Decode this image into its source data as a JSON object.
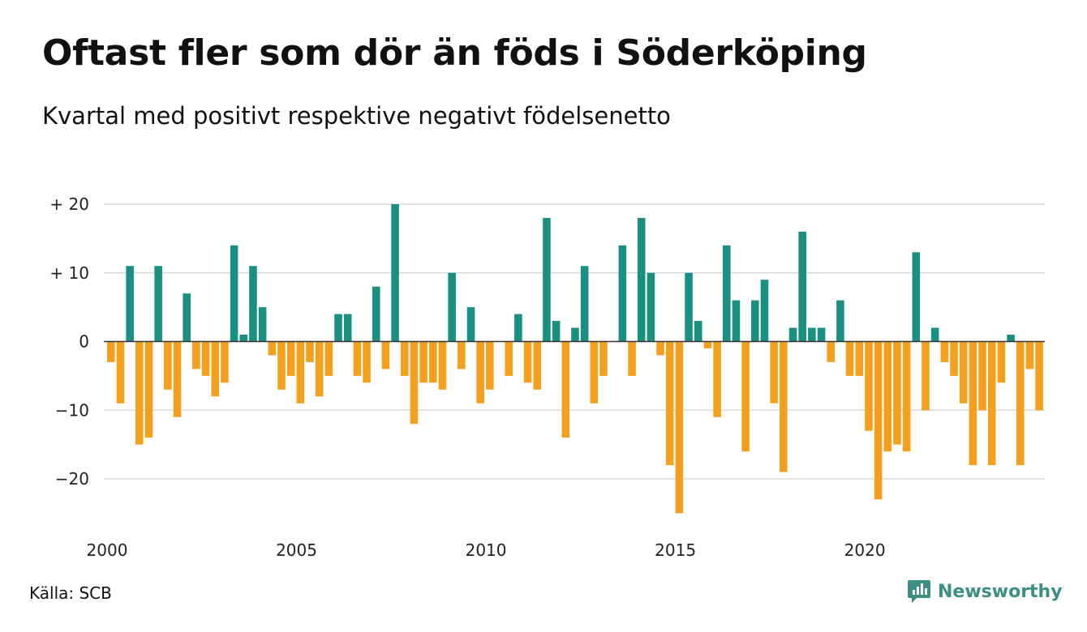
{
  "chart_data": {
    "type": "bar",
    "title": "Oftast fler som dör än föds i Söderköping",
    "subtitle": "Kvartal med positivt respektive negativt födelsenetto",
    "xlabel": "",
    "ylabel": "",
    "x_start_year": 2000,
    "periods_per_year": 4,
    "x_tick_labels": [
      "2000",
      "2005",
      "2010",
      "2015",
      "2020"
    ],
    "x_tick_years": [
      2000,
      2005,
      2010,
      2015,
      2020
    ],
    "y_ticks": [
      20,
      10,
      0,
      -10,
      -20
    ],
    "y_tick_labels": [
      "+ 20",
      "+ 10",
      "0",
      "−10",
      "−20"
    ],
    "ylim": [
      -26,
      21
    ],
    "grid": true,
    "colors": {
      "positive": "#1a9080",
      "negative": "#f5a01c",
      "grid": "#d9d9d9",
      "zero_line": "#333333"
    },
    "values": [
      -3,
      -9,
      11,
      -15,
      -14,
      11,
      -7,
      -11,
      7,
      -4,
      -5,
      -8,
      -6,
      14,
      1,
      11,
      5,
      -2,
      -7,
      -5,
      -9,
      -3,
      -8,
      -5,
      4,
      4,
      -5,
      -6,
      8,
      -4,
      20,
      -5,
      -12,
      -6,
      -6,
      -7,
      10,
      -4,
      5,
      -9,
      -7,
      0,
      -5,
      4,
      -6,
      -7,
      18,
      3,
      -14,
      2,
      11,
      -9,
      -5,
      0,
      14,
      -5,
      18,
      10,
      -2,
      -18,
      -25,
      10,
      3,
      -1,
      -11,
      14,
      6,
      -16,
      6,
      9,
      -9,
      -19,
      2,
      16,
      2,
      2,
      -3,
      6,
      -5,
      -5,
      -13,
      -23,
      -16,
      -15,
      -16,
      13,
      -10,
      2,
      -3,
      -5,
      -9,
      -18,
      -10,
      -18,
      -6,
      1,
      -18,
      -4,
      -10
    ]
  },
  "footer": {
    "source": "Källa: SCB",
    "brand": "Newsworthy",
    "brand_icon": "newsworthy-logo-icon"
  }
}
